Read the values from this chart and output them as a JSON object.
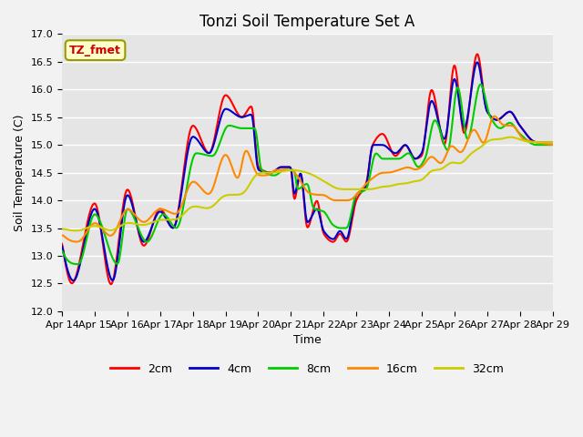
{
  "title": "Tonzi Soil Temperature Set A",
  "xlabel": "Time",
  "ylabel": "Soil Temperature (C)",
  "annotation": "TZ_fmet",
  "ylim": [
    12.0,
    17.0
  ],
  "yticks": [
    12.0,
    12.5,
    13.0,
    13.5,
    14.0,
    14.5,
    15.0,
    15.5,
    16.0,
    16.5,
    17.0
  ],
  "xtick_labels": [
    "Apr 14",
    "Apr 15",
    "Apr 16",
    "Apr 17",
    "Apr 18",
    "Apr 19",
    "Apr 20",
    "Apr 21",
    "Apr 22",
    "Apr 23",
    "Apr 24",
    "Apr 25",
    "Apr 26",
    "Apr 27",
    "Apr 28",
    "Apr 29"
  ],
  "series_colors": [
    "#ff0000",
    "#0000cc",
    "#00cc00",
    "#ff8800",
    "#cccc00"
  ],
  "series_labels": [
    "2cm",
    "4cm",
    "8cm",
    "16cm",
    "32cm"
  ],
  "plot_bg": "#e5e5e5",
  "fig_bg": "#f2f2f2",
  "title_fontsize": 12,
  "axis_fontsize": 9,
  "tick_fontsize": 8,
  "legend_fontsize": 9
}
